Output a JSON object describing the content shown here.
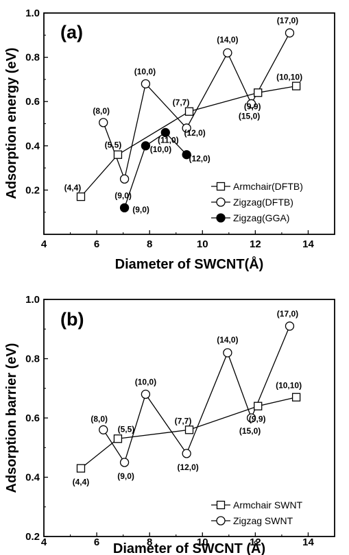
{
  "chart_data": [
    {
      "panel": "(a)",
      "type": "line",
      "xlabel": "Diameter of SWCNT(Å)",
      "ylabel": "Adsorption energy (eV)",
      "xlim": [
        4,
        15
      ],
      "ylim": [
        0.0,
        1.0
      ],
      "xticks": [
        "4",
        "6",
        "8",
        "10",
        "12",
        "14"
      ],
      "yticks": [
        "0.2",
        "0.4",
        "0.6",
        "0.8",
        "1.0"
      ],
      "legend_position": "bottom-right",
      "series": [
        {
          "name": "Armchair(DFTB)",
          "marker": "square-open",
          "points": [
            {
              "x": 5.4,
              "y": 0.17,
              "label": "(4,4)"
            },
            {
              "x": 6.8,
              "y": 0.36,
              "label": "(5,5)"
            },
            {
              "x": 9.5,
              "y": 0.555,
              "label": "(7,7)"
            },
            {
              "x": 12.1,
              "y": 0.64,
              "label": "(9,9)"
            },
            {
              "x": 13.55,
              "y": 0.67,
              "label": "(10,10)"
            }
          ]
        },
        {
          "name": "Zigzag(DFTB)",
          "marker": "circle-open",
          "points": [
            {
              "x": 6.25,
              "y": 0.505,
              "label": "(8,0)"
            },
            {
              "x": 7.05,
              "y": 0.25,
              "label": "(9,0)"
            },
            {
              "x": 7.85,
              "y": 0.68,
              "label": "(10,0)"
            },
            {
              "x": 9.4,
              "y": 0.48,
              "label": "(12,0)"
            },
            {
              "x": 10.95,
              "y": 0.82,
              "label": "(14,0)"
            },
            {
              "x": 11.85,
              "y": 0.59,
              "label": "(15,0)"
            },
            {
              "x": 13.3,
              "y": 0.91,
              "label": "(17,0)"
            }
          ]
        },
        {
          "name": "Zigzag(GGA)",
          "marker": "circle-filled",
          "points": [
            {
              "x": 7.05,
              "y": 0.12,
              "label": "(9,0)"
            },
            {
              "x": 7.85,
              "y": 0.4,
              "label": "(10,0)"
            },
            {
              "x": 8.6,
              "y": 0.46,
              "label": "(11,0)"
            },
            {
              "x": 9.4,
              "y": 0.36,
              "label": "(12,0)"
            }
          ]
        }
      ]
    },
    {
      "panel": "(b)",
      "type": "line",
      "xlabel": "Diameter of SWCNT (Å)",
      "ylabel": "Adsorption barrier (eV)",
      "xlim": [
        4,
        15
      ],
      "ylim": [
        0.2,
        1.0
      ],
      "xticks": [
        "4",
        "6",
        "8",
        "10",
        "12",
        "14"
      ],
      "yticks": [
        "0.2",
        "0.4",
        "0.6",
        "0.8",
        "1.0"
      ],
      "legend_position": "bottom-right",
      "series": [
        {
          "name": "Armchair SWNT",
          "marker": "square-open",
          "points": [
            {
              "x": 5.4,
              "y": 0.43,
              "label": "(4,4)"
            },
            {
              "x": 6.8,
              "y": 0.53,
              "label": "(5,5)"
            },
            {
              "x": 9.5,
              "y": 0.56,
              "label": "(7,7)"
            },
            {
              "x": 12.1,
              "y": 0.64,
              "label": "(9,9)"
            },
            {
              "x": 13.55,
              "y": 0.67,
              "label": "(10,10)"
            }
          ]
        },
        {
          "name": "Zigzag SWNT",
          "marker": "circle-open",
          "points": [
            {
              "x": 6.25,
              "y": 0.56,
              "label": "(8,0)"
            },
            {
              "x": 7.05,
              "y": 0.45,
              "label": "(9,0)"
            },
            {
              "x": 7.85,
              "y": 0.68,
              "label": "(10,0)"
            },
            {
              "x": 9.4,
              "y": 0.48,
              "label": "(12,0)"
            },
            {
              "x": 10.95,
              "y": 0.82,
              "label": "(14,0)"
            },
            {
              "x": 11.85,
              "y": 0.6,
              "label": "(15,0)"
            },
            {
              "x": 13.3,
              "y": 0.91,
              "label": "(17,0)"
            }
          ]
        }
      ]
    }
  ]
}
